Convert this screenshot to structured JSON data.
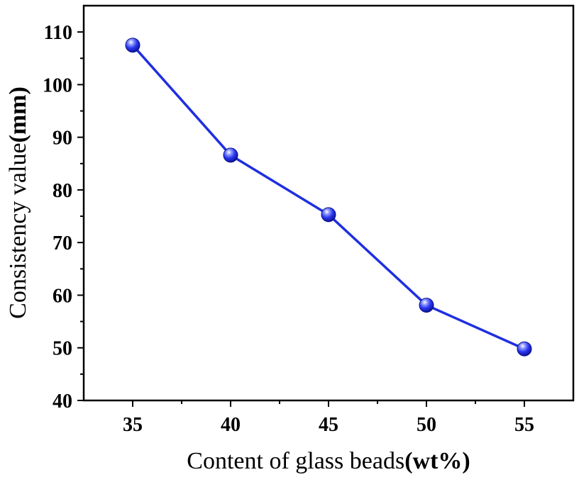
{
  "chart_data": {
    "type": "line",
    "title": "",
    "xlabel": "Content of glass beads",
    "xlabel_unit": "(wt%)",
    "ylabel": "Consistency value",
    "ylabel_unit": "(mm)",
    "x": [
      35,
      40,
      45,
      50,
      55
    ],
    "x_tick_labels": [
      "35",
      "40",
      "45",
      "50",
      "55"
    ],
    "y_tick_values": [
      40,
      50,
      60,
      70,
      80,
      90,
      100,
      110
    ],
    "y_tick_labels": [
      "40",
      "50",
      "60",
      "70",
      "80",
      "90",
      "100",
      "110"
    ],
    "xlim": [
      32.5,
      57.5
    ],
    "ylim": [
      40,
      115
    ],
    "grid": false,
    "series": [
      {
        "name": "Consistency value",
        "color": "#1f2fe0",
        "marker": "circle",
        "values": [
          107.5,
          86.6,
          75.3,
          58.1,
          49.8
        ]
      }
    ]
  }
}
